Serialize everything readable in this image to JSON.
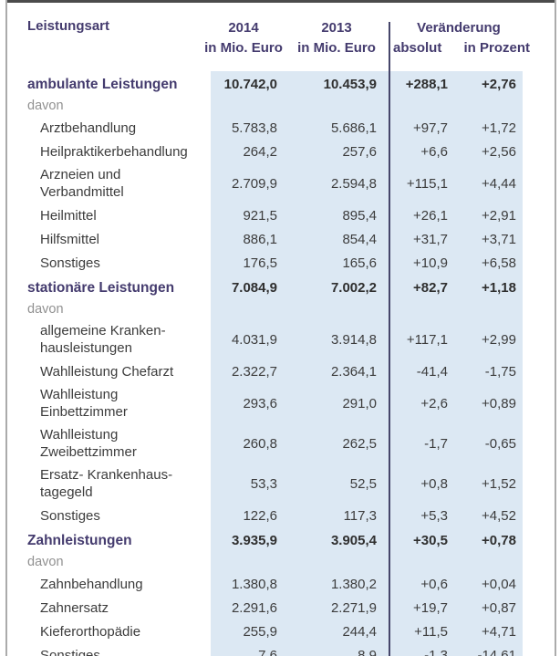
{
  "header": {
    "col_label": "Leistungsart",
    "col_2014_line1": "2014",
    "col_2014_line2": "in Mio. Euro",
    "col_2013_line1": "2013",
    "col_2013_line2": "in Mio. Euro",
    "col_change": "Veränderung",
    "col_change_abs": "absolut",
    "col_change_pct": "in Prozent"
  },
  "colors": {
    "heading_purple": "#443b6e",
    "body_text": "#3c3c3c",
    "davon_gray": "#919191",
    "blue_band": "#dce8f3",
    "divider": "#46466a",
    "frame_top": "#4b4b4b",
    "frame_side": "#ababab"
  },
  "table": {
    "rows": [
      {
        "type": "section",
        "label": "ambulante Leistungen",
        "v2014": "10.742,0",
        "v2013": "10.453,9",
        "abs": "+288,1",
        "pct": "+2,76"
      },
      {
        "type": "davon",
        "label": "davon",
        "v2014": "",
        "v2013": "",
        "abs": "",
        "pct": ""
      },
      {
        "type": "item",
        "label": "Arztbehandlung",
        "v2014": "5.783,8",
        "v2013": "5.686,1",
        "abs": "+97,7",
        "pct": "+1,72"
      },
      {
        "type": "item",
        "label": "Heilpraktikerbehandlung",
        "v2014": "264,2",
        "v2013": "257,6",
        "abs": "+6,6",
        "pct": "+2,56"
      },
      {
        "type": "item2",
        "label": "Arzneien und\nVerbandmittel",
        "v2014": "2.709,9",
        "v2013": "2.594,8",
        "abs": "+115,1",
        "pct": "+4,44"
      },
      {
        "type": "item",
        "label": "Heilmittel",
        "v2014": "921,5",
        "v2013": "895,4",
        "abs": "+26,1",
        "pct": "+2,91"
      },
      {
        "type": "item",
        "label": "Hilfsmittel",
        "v2014": "886,1",
        "v2013": "854,4",
        "abs": "+31,7",
        "pct": "+3,71"
      },
      {
        "type": "item",
        "label": "Sonstiges",
        "v2014": "176,5",
        "v2013": "165,6",
        "abs": "+10,9",
        "pct": "+6,58"
      },
      {
        "type": "section",
        "label": "stationäre Leistungen",
        "v2014": "7.084,9",
        "v2013": "7.002,2",
        "abs": "+82,7",
        "pct": "+1,18"
      },
      {
        "type": "davon",
        "label": "davon",
        "v2014": "",
        "v2013": "",
        "abs": "",
        "pct": ""
      },
      {
        "type": "item2",
        "label": "allgemeine Kranken-\nhausleistungen",
        "v2014": "4.031,9",
        "v2013": "3.914,8",
        "abs": "+117,1",
        "pct": "+2,99"
      },
      {
        "type": "item",
        "label": "Wahlleistung Chefarzt",
        "v2014": "2.322,7",
        "v2013": "2.364,1",
        "abs": "-41,4",
        "pct": "-1,75"
      },
      {
        "type": "item2",
        "label": "Wahlleistung\nEinbettzimmer",
        "v2014": "293,6",
        "v2013": "291,0",
        "abs": "+2,6",
        "pct": "+0,89"
      },
      {
        "type": "item2",
        "label": "Wahlleistung\nZweibettzimmer",
        "v2014": "260,8",
        "v2013": "262,5",
        "abs": "-1,7",
        "pct": "-0,65"
      },
      {
        "type": "item2",
        "label": "Ersatz- Krankenhaus-\ntagegeld",
        "v2014": "53,3",
        "v2013": "52,5",
        "abs": "+0,8",
        "pct": "+1,52"
      },
      {
        "type": "item",
        "label": "Sonstiges",
        "v2014": "122,6",
        "v2013": "117,3",
        "abs": "+5,3",
        "pct": "+4,52"
      },
      {
        "type": "section",
        "label": "Zahnleistungen",
        "v2014": "3.935,9",
        "v2013": "3.905,4",
        "abs": "+30,5",
        "pct": "+0,78"
      },
      {
        "type": "davon",
        "label": "davon",
        "v2014": "",
        "v2013": "",
        "abs": "",
        "pct": ""
      },
      {
        "type": "item",
        "label": "Zahnbehandlung",
        "v2014": "1.380,8",
        "v2013": "1.380,2",
        "abs": "+0,6",
        "pct": "+0,04"
      },
      {
        "type": "item",
        "label": "Zahnersatz",
        "v2014": "2.291,6",
        "v2013": "2.271,9",
        "abs": "+19,7",
        "pct": "+0,87"
      },
      {
        "type": "item",
        "label": "Kieferorthopädie",
        "v2014": "255,9",
        "v2013": "244,4",
        "abs": "+11,5",
        "pct": "+4,71"
      },
      {
        "type": "item",
        "label": "Sonstiges",
        "v2014": "7,6",
        "v2013": "8,9",
        "abs": "-1,3",
        "pct": "-14,61"
      }
    ]
  }
}
